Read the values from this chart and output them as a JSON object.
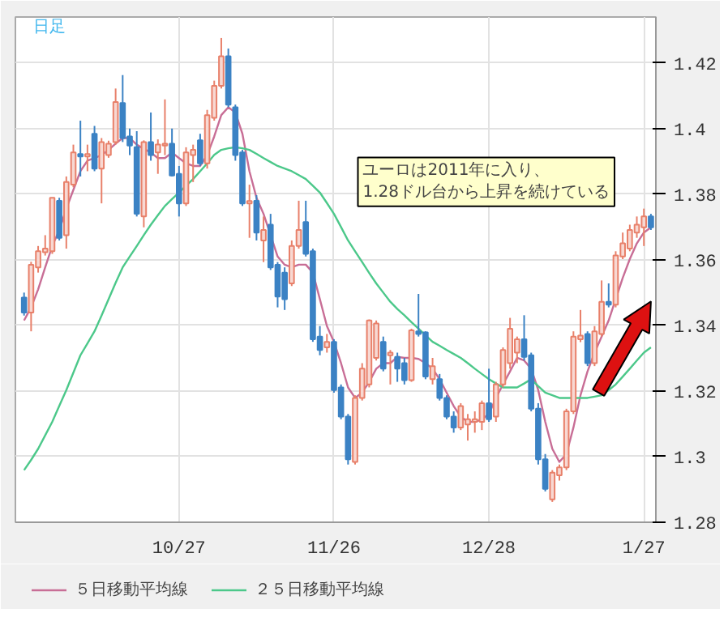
{
  "chart_data": {
    "type": "candlestick",
    "subtitle": "日足",
    "categories": [
      null,
      null,
      null,
      null,
      null,
      null,
      null,
      null,
      null,
      null,
      null,
      null,
      null,
      null,
      null,
      null,
      null,
      null,
      null,
      null,
      null,
      null,
      "10/27",
      null,
      null,
      null,
      null,
      null,
      null,
      null,
      null,
      null,
      null,
      null,
      null,
      null,
      null,
      null,
      null,
      null,
      null,
      null,
      null,
      null,
      "11/26",
      null,
      null,
      null,
      null,
      null,
      null,
      null,
      null,
      null,
      null,
      null,
      null,
      null,
      null,
      null,
      null,
      null,
      null,
      null,
      null,
      null,
      "12/28",
      null,
      null,
      null,
      null,
      null,
      null,
      null,
      null,
      null,
      null,
      null,
      null,
      null,
      null,
      null,
      null,
      null,
      null,
      null,
      null,
      null,
      "1/27",
      null
    ],
    "ohlc": [
      [
        1.3485,
        1.35,
        1.343,
        1.3439
      ],
      [
        1.3439,
        1.3594,
        1.3382,
        1.3585
      ],
      [
        1.3577,
        1.3642,
        1.3561,
        1.3626
      ],
      [
        1.3623,
        1.3675,
        1.3613,
        1.3634
      ],
      [
        1.3626,
        1.3789,
        1.3618,
        1.3789
      ],
      [
        1.378,
        1.3789,
        1.3659,
        1.3667
      ],
      [
        1.3675,
        1.3854,
        1.3634,
        1.3837
      ],
      [
        1.3829,
        1.3951,
        1.3821,
        1.3927
      ],
      [
        1.3922,
        1.4024,
        1.3854,
        1.3915
      ],
      [
        1.3915,
        1.3951,
        1.387,
        1.3922
      ],
      [
        1.3984,
        1.4008,
        1.387,
        1.3878
      ],
      [
        1.3878,
        1.3971,
        1.3772,
        1.3959
      ],
      [
        1.3919,
        1.3963,
        1.3911,
        1.3954
      ],
      [
        1.3959,
        1.4122,
        1.3951,
        1.4081
      ],
      [
        1.4078,
        1.4163,
        1.3959,
        1.3971
      ],
      [
        1.3976,
        1.4,
        1.3919,
        1.3948
      ],
      [
        1.3943,
        1.3992,
        1.3732,
        1.374
      ],
      [
        1.3732,
        1.3964,
        1.3699,
        1.3959
      ],
      [
        1.3959,
        1.4049,
        1.3902,
        1.3919
      ],
      [
        1.3927,
        1.3967,
        1.3862,
        1.3951
      ],
      [
        1.3948,
        1.4089,
        1.3919,
        1.3954
      ],
      [
        1.3954,
        1.4,
        1.3854,
        1.3857
      ],
      [
        1.3862,
        1.3886,
        1.3732,
        1.3772
      ],
      [
        1.3772,
        1.3943,
        1.3764,
        1.3927
      ],
      [
        1.3919,
        1.3951,
        1.3837,
        1.3935
      ],
      [
        1.3964,
        1.3984,
        1.3886,
        1.3894
      ],
      [
        1.3894,
        1.4057,
        1.3878,
        1.4041
      ],
      [
        1.4033,
        1.4146,
        1.4024,
        1.413
      ],
      [
        1.413,
        1.4276,
        1.4122,
        1.422
      ],
      [
        1.422,
        1.4244,
        1.4065,
        1.4073
      ],
      [
        1.4065,
        1.4073,
        1.3902,
        1.3919
      ],
      [
        1.3927,
        1.3935,
        1.3764,
        1.3772
      ],
      [
        1.3772,
        1.3829,
        1.3667,
        1.3779
      ],
      [
        1.378,
        1.3797,
        1.3659,
        1.3683
      ],
      [
        1.3659,
        1.3732,
        1.3593,
        1.3691
      ],
      [
        1.3707,
        1.374,
        1.3569,
        1.3577
      ],
      [
        1.3585,
        1.3593,
        1.3455,
        1.3488
      ],
      [
        1.3561,
        1.3577,
        1.3447,
        1.348
      ],
      [
        1.3528,
        1.3659,
        1.352,
        1.3642
      ],
      [
        1.3642,
        1.378,
        1.3634,
        1.3691
      ],
      [
        1.3715,
        1.378,
        1.361,
        1.3618
      ],
      [
        1.3626,
        1.3634,
        1.335,
        1.3358
      ],
      [
        1.3366,
        1.3398,
        1.3309,
        1.3325
      ],
      [
        1.3333,
        1.3374,
        1.3317,
        1.335
      ],
      [
        1.335,
        1.3358,
        1.3195,
        1.3203
      ],
      [
        1.3211,
        1.322,
        1.3114,
        1.3122
      ],
      [
        1.3122,
        1.313,
        1.2976,
        1.2992
      ],
      [
        1.2984,
        1.3187,
        1.2976,
        1.3179
      ],
      [
        1.3179,
        1.3285,
        1.3171,
        1.3268
      ],
      [
        1.322,
        1.3418,
        1.3211,
        1.3415
      ],
      [
        1.3301,
        1.3415,
        1.3293,
        1.3406
      ],
      [
        1.335,
        1.3366,
        1.326,
        1.3268
      ],
      [
        1.3309,
        1.3325,
        1.322,
        1.3317
      ],
      [
        1.3304,
        1.3317,
        1.3228,
        1.3268
      ],
      [
        1.3285,
        1.3301,
        1.322,
        1.3233
      ],
      [
        1.3233,
        1.339,
        1.3228,
        1.3385
      ],
      [
        1.3382,
        1.3496,
        1.3366,
        1.3374
      ],
      [
        1.3379,
        1.3382,
        1.3236,
        1.3244
      ],
      [
        1.3236,
        1.3301,
        1.322,
        1.3276
      ],
      [
        1.3236,
        1.3252,
        1.3171,
        1.3179
      ],
      [
        1.3179,
        1.3187,
        1.3114,
        1.3122
      ],
      [
        1.3122,
        1.3138,
        1.3073,
        1.3089
      ],
      [
        1.3089,
        1.3163,
        1.3081,
        1.3154
      ],
      [
        1.3098,
        1.313,
        1.3049,
        1.3114
      ],
      [
        1.3106,
        1.3138,
        1.3073,
        1.3114
      ],
      [
        1.3106,
        1.3171,
        1.3081,
        1.3163
      ],
      [
        1.3163,
        1.3268,
        1.3106,
        1.3114
      ],
      [
        1.3122,
        1.3228,
        1.3106,
        1.322
      ],
      [
        1.322,
        1.3333,
        1.3211,
        1.3325
      ],
      [
        1.3285,
        1.3423,
        1.3268,
        1.339
      ],
      [
        1.3317,
        1.3366,
        1.3285,
        1.3358
      ],
      [
        1.3358,
        1.3431,
        1.3293,
        1.3304
      ],
      [
        1.3309,
        1.3317,
        1.3138,
        1.3146
      ],
      [
        1.3146,
        1.3163,
        1.2976,
        1.2992
      ],
      [
        1.2992,
        1.3008,
        1.2894,
        1.2902
      ],
      [
        1.287,
        1.2959,
        1.2862,
        1.2951
      ],
      [
        1.2943,
        1.2976,
        1.2927,
        1.2967
      ],
      [
        1.2967,
        1.3146,
        1.2959,
        1.3138
      ],
      [
        1.3138,
        1.3382,
        1.313,
        1.3366
      ],
      [
        1.3358,
        1.3447,
        1.3349,
        1.3369
      ],
      [
        1.3374,
        1.3382,
        1.3276,
        1.3285
      ],
      [
        1.3285,
        1.3398,
        1.3276,
        1.3382
      ],
      [
        1.3374,
        1.3537,
        1.3366,
        1.3472
      ],
      [
        1.3472,
        1.3528,
        1.3455,
        1.3463
      ],
      [
        1.3463,
        1.3626,
        1.3455,
        1.3613
      ],
      [
        1.361,
        1.3683,
        1.3602,
        1.365
      ],
      [
        1.3634,
        1.3707,
        1.3626,
        1.3691
      ],
      [
        1.3683,
        1.3732,
        1.3667,
        1.3707
      ],
      [
        1.3699,
        1.3756,
        1.3642,
        1.3732
      ],
      [
        1.3732,
        1.374,
        1.3691,
        1.3699
      ]
    ],
    "colors": [
      "#3b82c4",
      "#e8806a",
      "#e8806a",
      "#e8806a",
      "#e8806a",
      "#3b82c4",
      "#e8806a",
      "#e8806a",
      "#3b82c4",
      "#e8806a",
      "#3b82c4",
      "#e8806a",
      "#e8806a",
      "#e8806a",
      "#3b82c4",
      "#3b82c4",
      "#3b82c4",
      "#e8806a",
      "#3b82c4",
      "#e8806a",
      "#e8806a",
      "#3b82c4",
      "#3b82c4",
      "#e8806a",
      "#e8806a",
      "#3b82c4",
      "#e8806a",
      "#e8806a",
      "#e8806a",
      "#3b82c4",
      "#3b82c4",
      "#3b82c4",
      "#e8806a",
      "#3b82c4",
      "#e8806a",
      "#3b82c4",
      "#3b82c4",
      "#3b82c4",
      "#e8806a",
      "#e8806a",
      "#3b82c4",
      "#3b82c4",
      "#3b82c4",
      "#e8806a",
      "#3b82c4",
      "#3b82c4",
      "#3b82c4",
      "#e8806a",
      "#e8806a",
      "#e8806a",
      "#e8806a",
      "#3b82c4",
      "#e8806a",
      "#3b82c4",
      "#3b82c4",
      "#e8806a",
      "#3b82c4",
      "#3b82c4",
      "#e8806a",
      "#3b82c4",
      "#3b82c4",
      "#3b82c4",
      "#e8806a",
      "#e8806a",
      "#e8806a",
      "#e8806a",
      "#3b82c4",
      "#e8806a",
      "#e8806a",
      "#e8806a",
      "#e8806a",
      "#3b82c4",
      "#3b82c4",
      "#3b82c4",
      "#3b82c4",
      "#e8806a",
      "#e8806a",
      "#e8806a",
      "#e8806a",
      "#e8806a",
      "#3b82c4",
      "#e8806a",
      "#e8806a",
      "#3b82c4",
      "#e8806a",
      "#e8806a",
      "#e8806a",
      "#e8806a",
      "#e8806a",
      "#3b82c4"
    ],
    "series": [
      {
        "name": "５日移動平均線",
        "type": "line",
        "color": "#c86e96",
        "values": [
          1.3415,
          1.3455,
          1.351,
          1.3577,
          1.3642,
          1.369,
          1.3756,
          1.3813,
          1.387,
          1.3902,
          1.391,
          1.3919,
          1.3935,
          1.3954,
          1.3971,
          1.3971,
          1.3951,
          1.3938,
          1.3927,
          1.391,
          1.391,
          1.3927,
          1.391,
          1.3894,
          1.3886,
          1.3886,
          1.3919,
          1.3976,
          1.4041,
          1.4065,
          1.4049,
          1.3984,
          1.387,
          1.3789,
          1.374,
          1.3675,
          1.361,
          1.3585,
          1.3577,
          1.3585,
          1.3585,
          1.3561,
          1.348,
          1.3398,
          1.335,
          1.3285,
          1.3211,
          1.3179,
          1.3195,
          1.3228,
          1.3268,
          1.3285,
          1.3285,
          1.3304,
          1.3301,
          1.3301,
          1.3298,
          1.3285,
          1.3268,
          1.3236,
          1.3195,
          1.3154,
          1.3122,
          1.3106,
          1.3106,
          1.3114,
          1.313,
          1.3179,
          1.322,
          1.326,
          1.3301,
          1.3293,
          1.3268,
          1.3203,
          1.3106,
          1.3024,
          1.2984,
          1.3008,
          1.3089,
          1.3187,
          1.326,
          1.3317,
          1.3366,
          1.3415,
          1.348,
          1.3545,
          1.3602,
          1.365,
          1.3683,
          1.3699
        ]
      },
      {
        "name": "２５日移動平均線",
        "type": "line",
        "color": "#4cc88a",
        "values": [
          1.2959,
          1.299,
          1.3024,
          1.3065,
          1.3106,
          1.3155,
          1.3203,
          1.3256,
          1.3309,
          1.3345,
          1.3382,
          1.343,
          1.348,
          1.353,
          1.3577,
          1.361,
          1.3642,
          1.3675,
          1.3707,
          1.3736,
          1.3764,
          1.3785,
          1.3805,
          1.3826,
          1.3846,
          1.387,
          1.3894,
          1.392,
          1.3935,
          1.394,
          1.3943,
          1.394,
          1.3935,
          1.3923,
          1.391,
          1.3898,
          1.3886,
          1.3878,
          1.387,
          1.3858,
          1.3846,
          1.3826,
          1.3805,
          1.3773,
          1.374,
          1.37,
          1.3659,
          1.3626,
          1.3593,
          1.356,
          1.3528,
          1.35,
          1.3472,
          1.345,
          1.3431,
          1.341,
          1.339,
          1.337,
          1.335,
          1.3338,
          1.3325,
          1.3313,
          1.3301,
          1.3285,
          1.3268,
          1.3252,
          1.3236,
          1.3223,
          1.3211,
          1.3211,
          1.3211,
          1.3223,
          1.3236,
          1.3215,
          1.3195,
          1.3187,
          1.3179,
          1.3179,
          1.3179,
          1.3179,
          1.3179,
          1.3183,
          1.3187,
          1.3203,
          1.322,
          1.3244,
          1.3268,
          1.3293,
          1.3317,
          1.3333
        ]
      }
    ],
    "ylim": [
      1.28,
      1.434
    ],
    "yticks": [
      1.28,
      1.3,
      1.32,
      1.34,
      1.36,
      1.38,
      1.4,
      1.42
    ],
    "grid": true,
    "legend": "bottom",
    "annotations": [
      "ユーロは2011年に入り、\n1.28ドル台から上昇を続けている"
    ]
  }
}
